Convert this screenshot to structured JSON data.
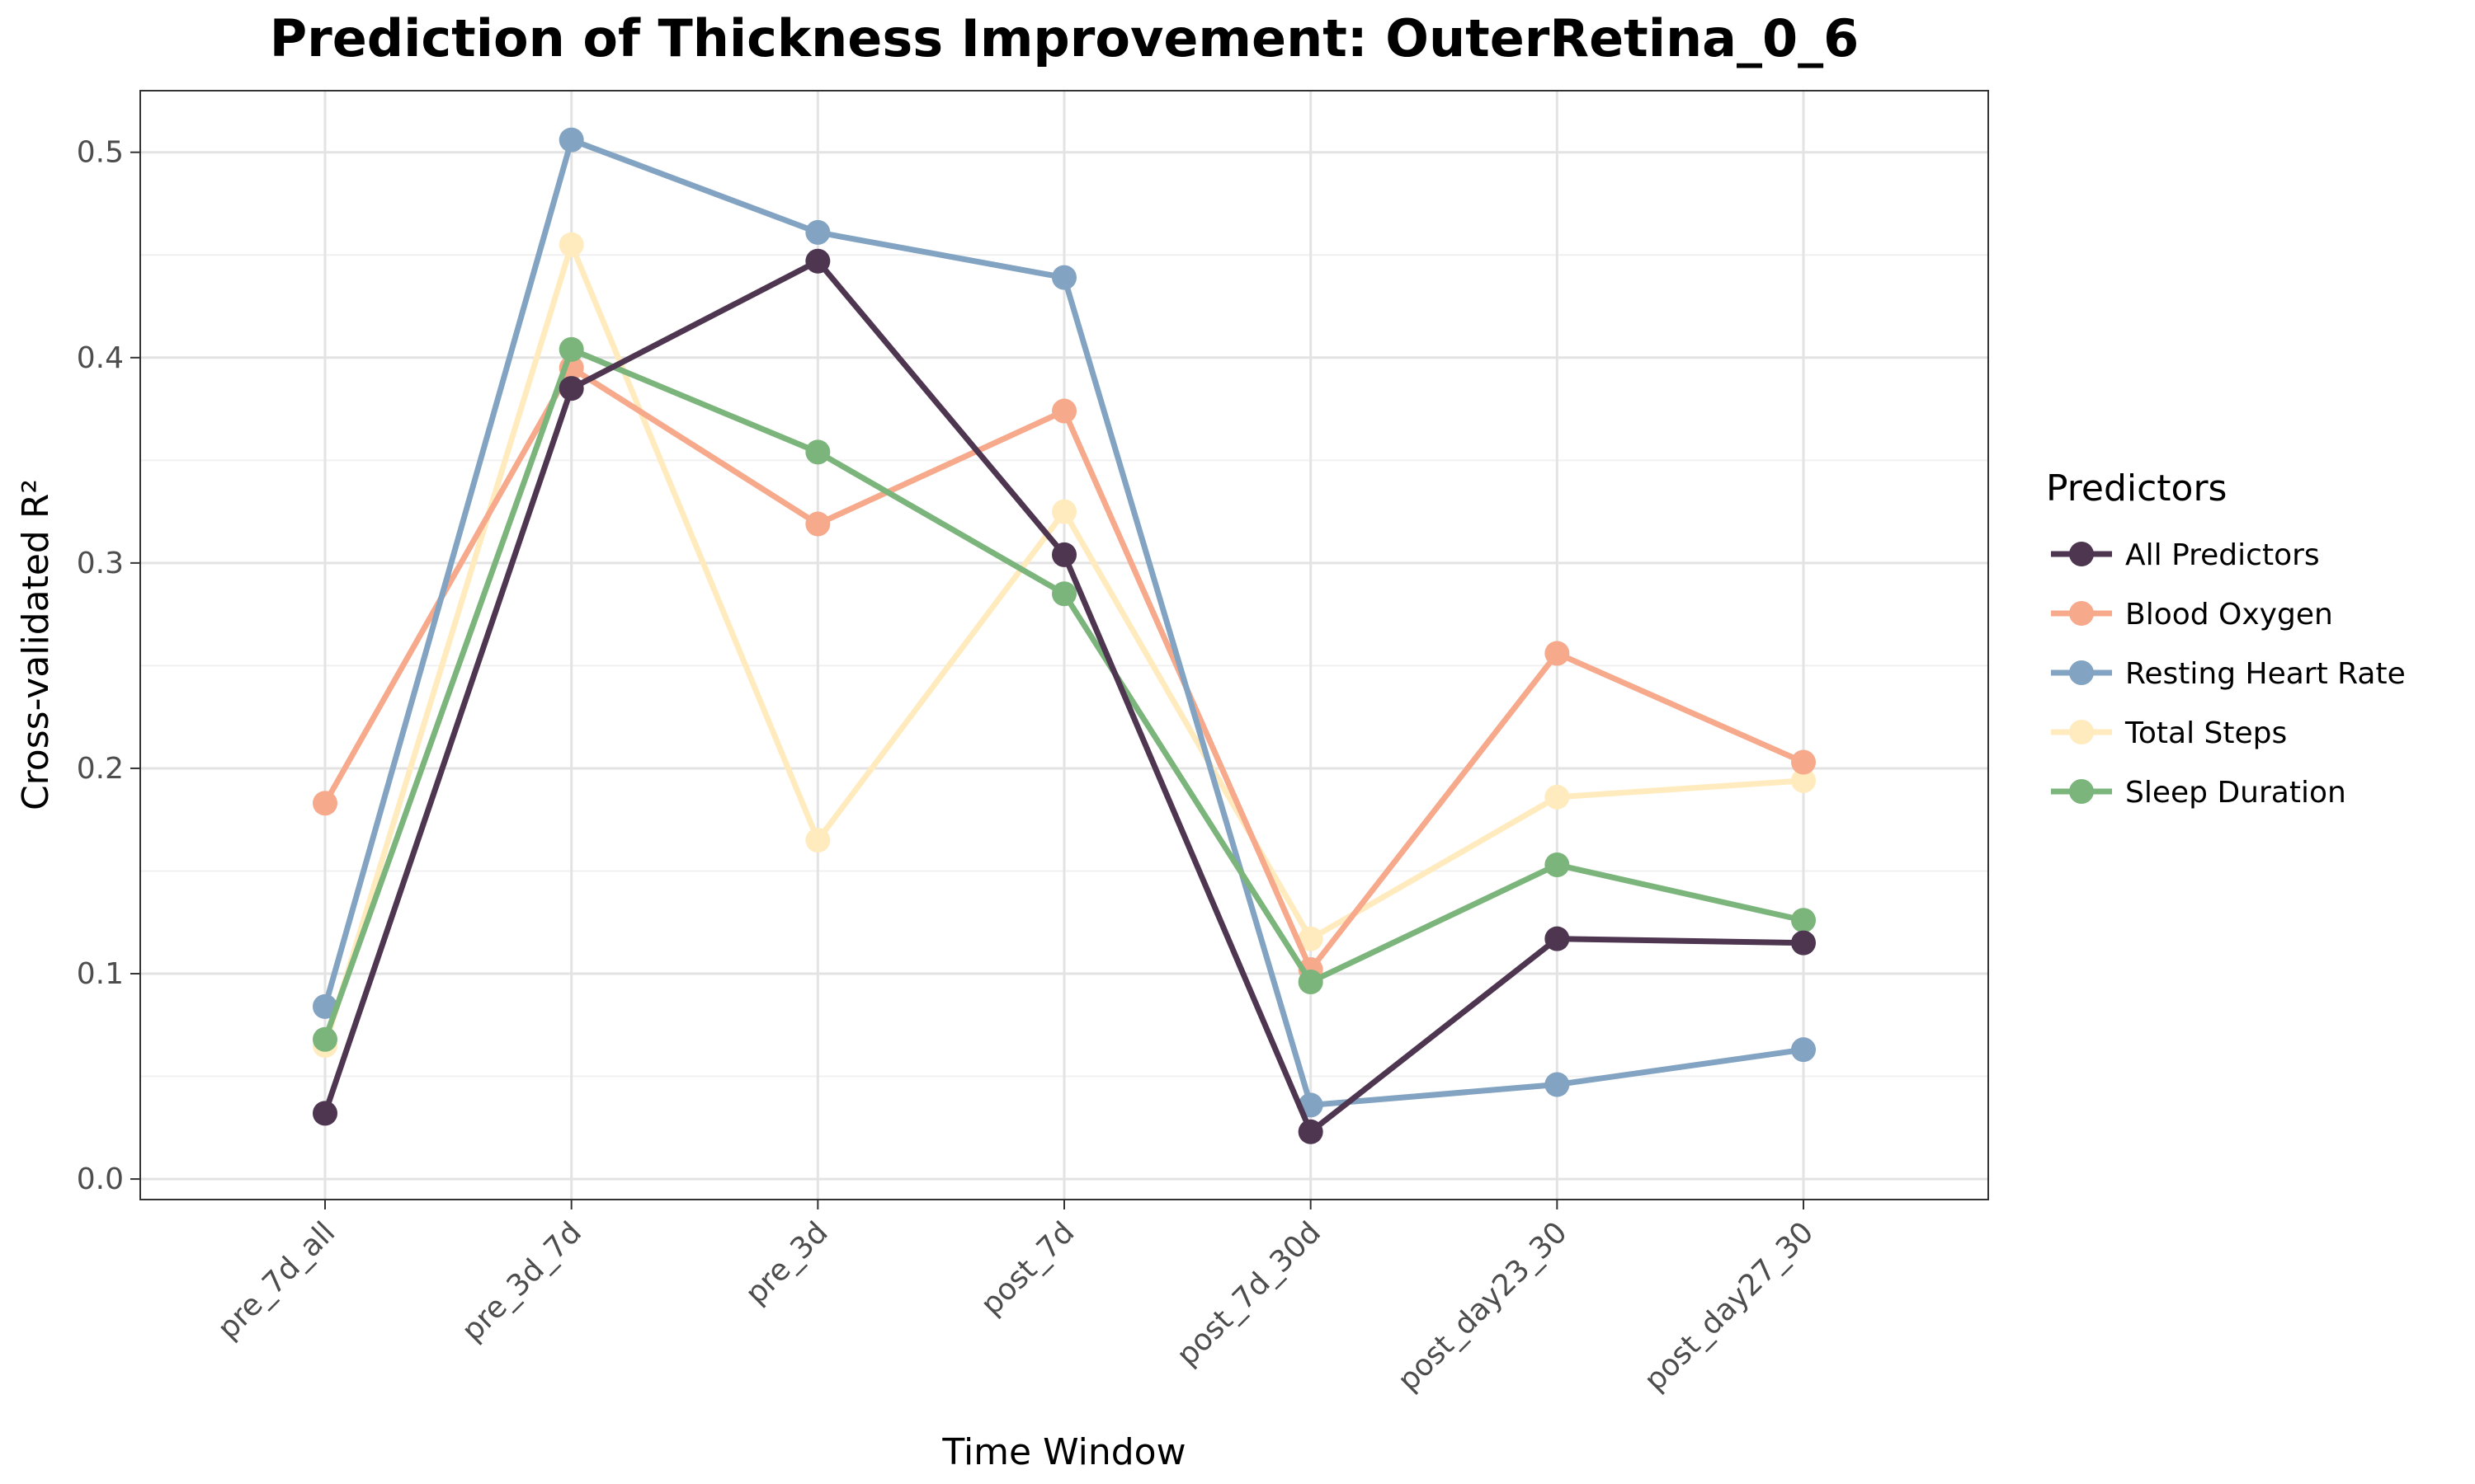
{
  "chart_data": {
    "type": "line",
    "title": "Prediction of Thickness Improvement: OuterRetina_0_6",
    "xlabel": "Time Window",
    "ylabel": "Cross-validated R²",
    "categories": [
      "pre_7d_all",
      "pre_3d_7d",
      "pre_3d",
      "post_7d",
      "post_7d_30d",
      "post_day23_30",
      "post_day27_30"
    ],
    "ylim": [
      -0.01,
      0.53
    ],
    "yticks": [
      "0.0",
      "0.1",
      "0.2",
      "0.3",
      "0.4",
      "0.5"
    ],
    "grid": true,
    "legend_title": "Predictors",
    "legend_position": "right",
    "series": [
      {
        "name": "Total Steps",
        "color": "#FFEBBE",
        "values": [
          0.065,
          0.455,
          0.165,
          0.325,
          0.117,
          0.186,
          0.194
        ]
      },
      {
        "name": "Blood Oxygen",
        "color": "#F7A98C",
        "values": [
          0.183,
          0.395,
          0.319,
          0.374,
          0.102,
          0.256,
          0.203
        ]
      },
      {
        "name": "Resting Heart Rate",
        "color": "#82A3C2",
        "values": [
          0.084,
          0.506,
          0.461,
          0.439,
          0.036,
          0.046,
          0.063
        ]
      },
      {
        "name": "Sleep Duration",
        "color": "#7BB57B",
        "values": [
          0.068,
          0.404,
          0.354,
          0.285,
          0.096,
          0.153,
          0.126
        ]
      },
      {
        "name": "All Predictors",
        "color": "#4E3550",
        "values": [
          0.032,
          0.385,
          0.447,
          0.304,
          0.023,
          0.117,
          0.115
        ]
      }
    ],
    "legend_order": [
      "All Predictors",
      "Blood Oxygen",
      "Resting Heart Rate",
      "Total Steps",
      "Sleep Duration"
    ]
  }
}
